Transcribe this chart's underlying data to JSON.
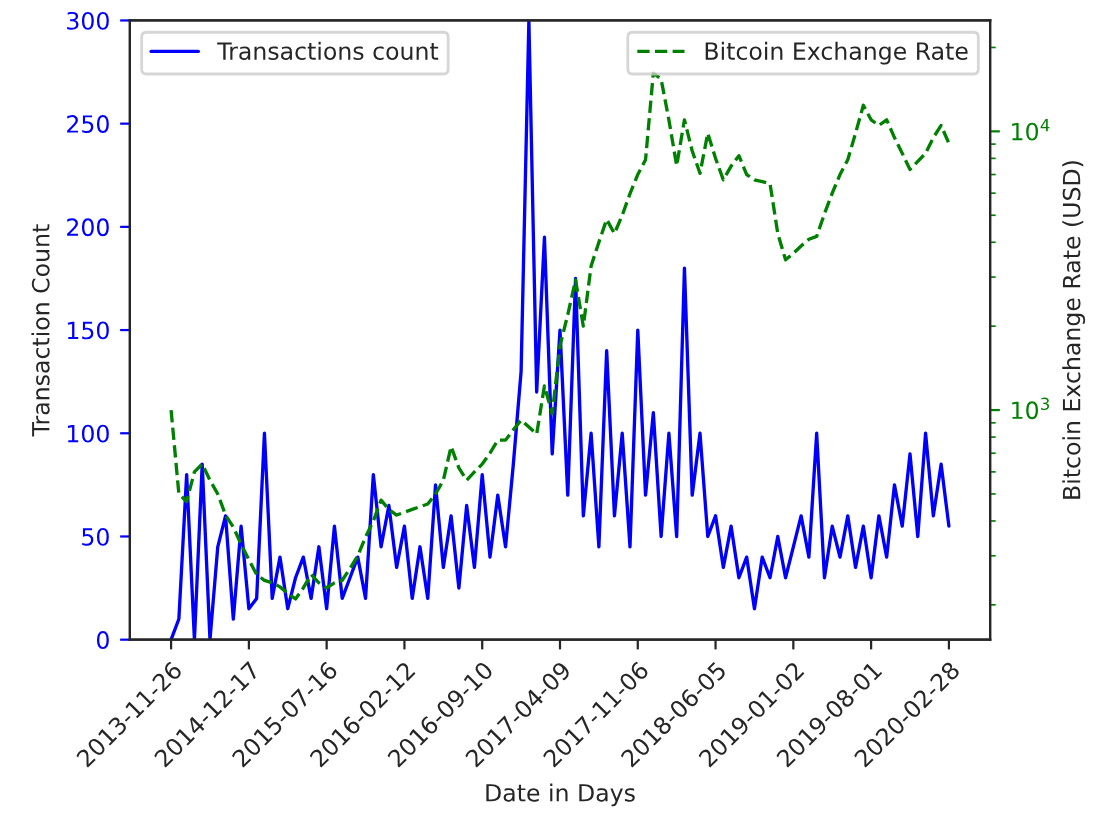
{
  "chart_data": {
    "type": "line",
    "xlabel": "Date in Days",
    "ylabel": "Transaction Count",
    "y2label": "Bitcoin Exchange Rate (USD)",
    "categories": [
      "2013-11-26",
      null,
      null,
      null,
      null,
      null,
      null,
      null,
      null,
      null,
      "2014-12-17",
      null,
      null,
      null,
      null,
      null,
      null,
      null,
      null,
      null,
      "2015-07-16",
      null,
      null,
      null,
      null,
      null,
      null,
      null,
      null,
      null,
      "2016-02-12",
      null,
      null,
      null,
      null,
      null,
      null,
      null,
      null,
      null,
      "2016-09-10",
      null,
      null,
      null,
      null,
      null,
      null,
      null,
      null,
      null,
      "2017-04-09",
      null,
      null,
      null,
      null,
      null,
      null,
      null,
      null,
      null,
      "2017-11-06",
      null,
      null,
      null,
      null,
      null,
      null,
      null,
      null,
      null,
      "2018-06-05",
      null,
      null,
      null,
      null,
      null,
      null,
      null,
      null,
      null,
      "2019-01-02",
      null,
      null,
      null,
      null,
      null,
      null,
      null,
      null,
      null,
      "2019-08-01",
      null,
      null,
      null,
      null,
      null,
      null,
      null,
      null,
      null,
      "2020-02-28"
    ],
    "ylim": [
      0,
      300
    ],
    "yticks": [
      0,
      50,
      100,
      150,
      200,
      250,
      300
    ],
    "y2lim": [
      150,
      25000
    ],
    "log": "y2",
    "y2ticks": [
      {
        "value": 1000,
        "label": "10$^{3}$"
      },
      {
        "value": 10000,
        "label": "10$^{4}$"
      }
    ],
    "legend": "top left",
    "grid": false,
    "series": [
      {
        "name": "Transactions count",
        "color": "#0000ff",
        "line_style": "solid",
        "values": [
          0,
          10,
          80,
          0,
          85,
          0,
          45,
          60,
          10,
          55,
          15,
          20,
          100,
          20,
          40,
          15,
          30,
          40,
          20,
          45,
          15,
          55,
          20,
          30,
          40,
          20,
          80,
          45,
          65,
          35,
          55,
          20,
          45,
          20,
          75,
          35,
          60,
          25,
          65,
          35,
          80,
          40,
          70,
          45,
          85,
          130,
          300,
          120,
          195,
          90,
          150,
          70,
          175,
          60,
          100,
          45,
          140,
          60,
          100,
          45,
          150,
          70,
          110,
          50,
          100,
          50,
          180,
          70,
          100,
          50,
          60,
          35,
          55,
          30,
          40,
          15,
          40,
          30,
          50,
          30,
          45,
          60,
          40,
          100,
          30,
          55,
          40,
          60,
          35,
          55,
          30,
          60,
          40,
          75,
          55,
          90,
          50,
          100,
          60,
          85,
          55
        ]
      },
      {
        "name": "Bitcoin Exchange Rate",
        "color": "#008000",
        "line_style": "dashed",
        "axis": "y2",
        "values": [
          1000,
          500,
          470,
          600,
          640,
          560,
          500,
          420,
          380,
          330,
          290,
          257,
          245,
          240,
          232,
          220,
          210,
          230,
          257,
          240,
          230,
          240,
          245,
          270,
          300,
          350,
          400,
          475,
          440,
          420,
          430,
          440,
          450,
          460,
          500,
          560,
          740,
          620,
          560,
          600,
          640,
          700,
          780,
          780,
          850,
          920,
          870,
          820,
          1220,
          970,
          1700,
          2200,
          2930,
          2000,
          3290,
          4000,
          4830,
          4300,
          5000,
          5980,
          7000,
          7910,
          16200,
          15400,
          11000,
          7530,
          11000,
          8500,
          7070,
          9850,
          8000,
          6700,
          7500,
          8180,
          7000,
          6700,
          6600,
          6500,
          4300,
          3460,
          3650,
          3880,
          4100,
          4200,
          5060,
          6000,
          7000,
          7910,
          9850,
          12400,
          11000,
          10500,
          11000,
          9500,
          8340,
          7300,
          7800,
          8340,
          9500,
          10500,
          9060
        ]
      }
    ]
  }
}
